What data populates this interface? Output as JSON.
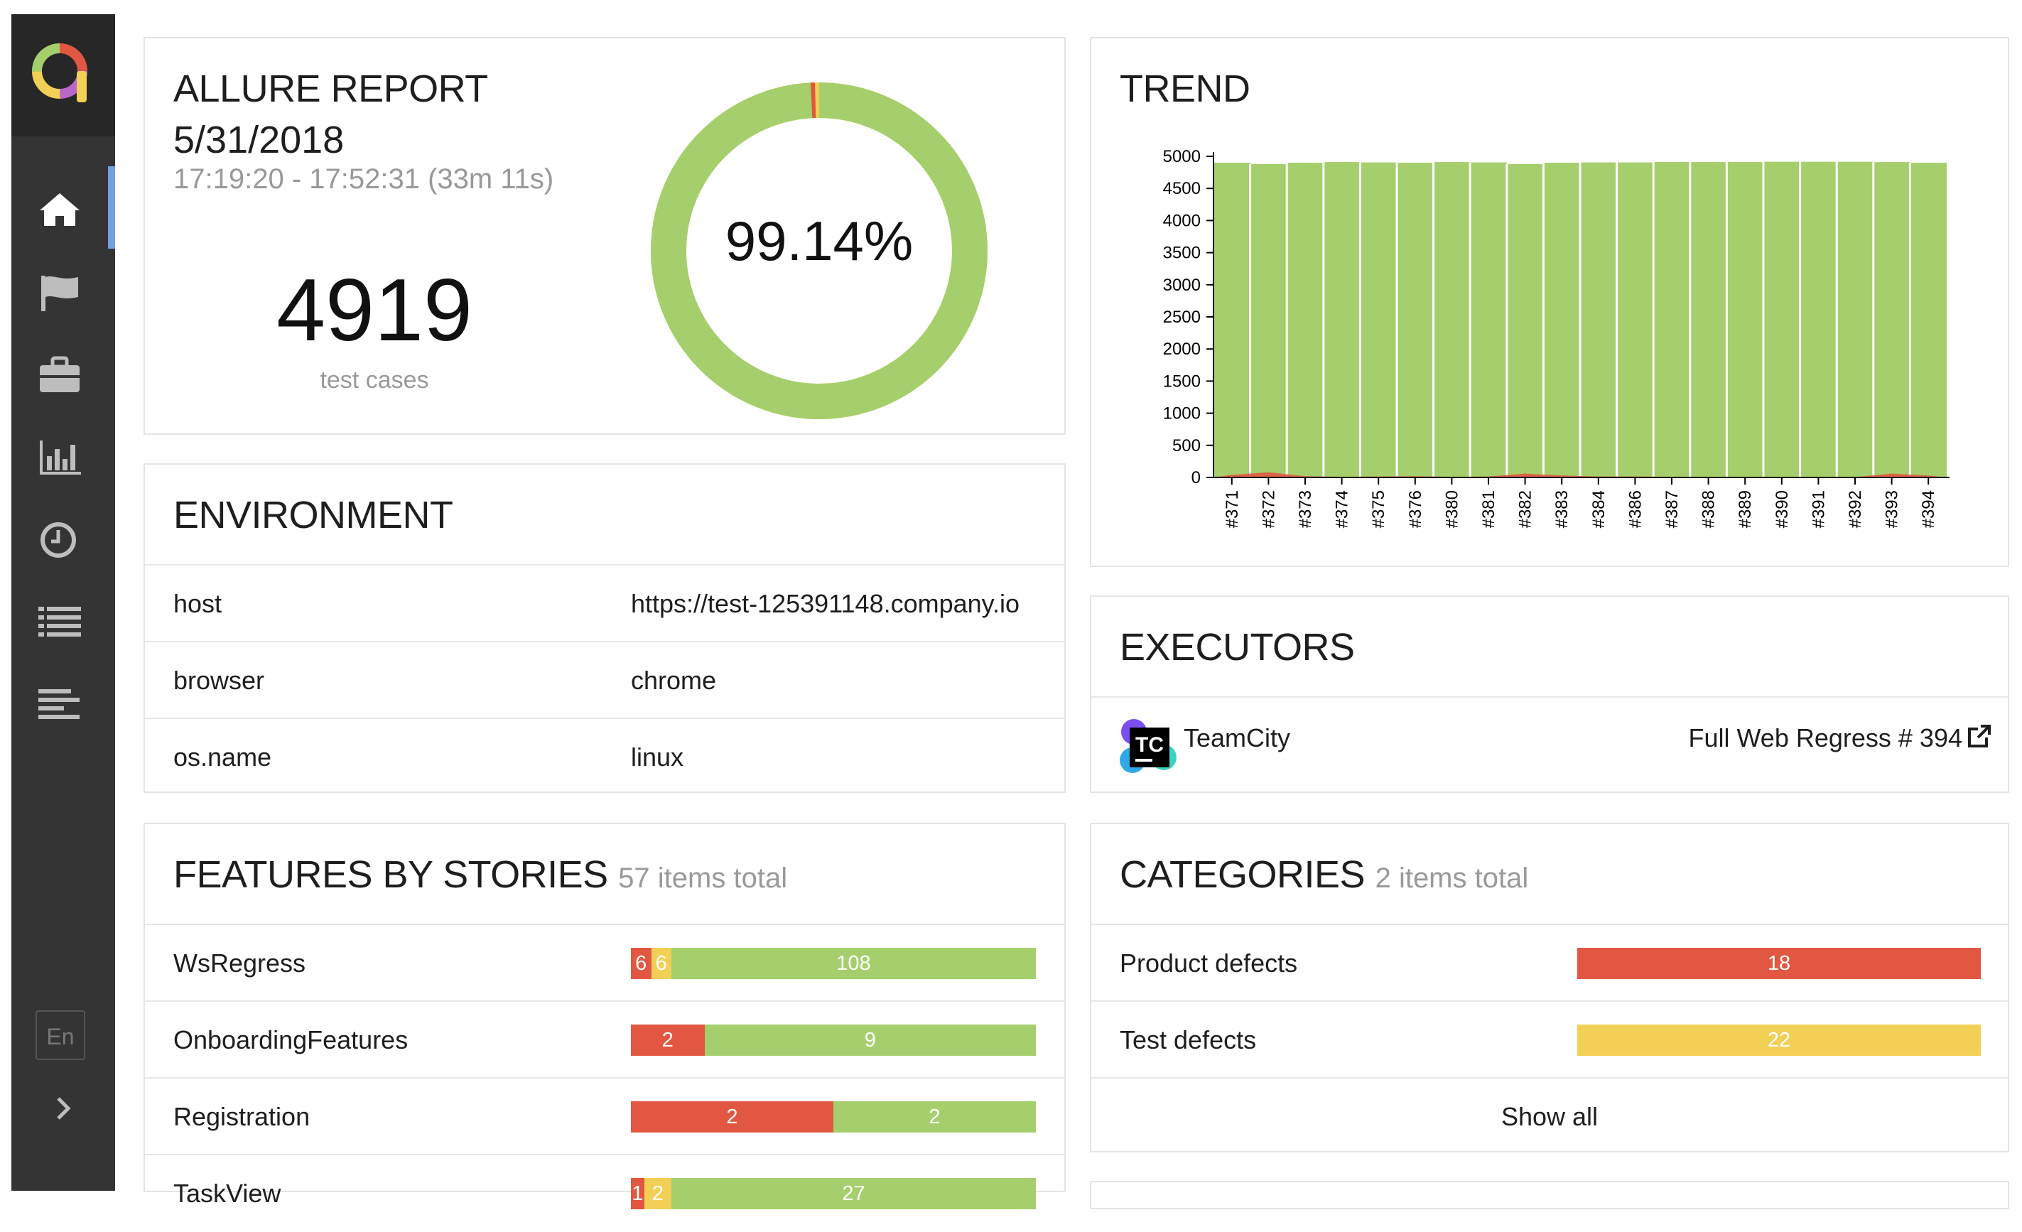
{
  "sidebar": {
    "nav_items": [
      "home-icon",
      "flag-icon",
      "briefcase-icon",
      "bar-chart-icon",
      "clock-icon",
      "list-icon",
      "timeline-icon"
    ],
    "active": "home-icon",
    "lang_label": "En"
  },
  "summary": {
    "title": "ALLURE REPORT",
    "date": "5/31/2018",
    "time_range": "17:19:20 - 17:52:31 (33m 11s)",
    "count": "4919",
    "count_label": "test cases",
    "percent": "99.14%",
    "passed_fraction": 0.9914,
    "colors": {
      "passed": "#a5cf6c",
      "failed": "#e15742",
      "broken": "#f2d055"
    }
  },
  "trend": {
    "title": "TREND"
  },
  "chart_data": {
    "type": "area",
    "title": "TREND",
    "x": [
      "#371",
      "#372",
      "#373",
      "#374",
      "#375",
      "#376",
      "#380",
      "#381",
      "#382",
      "#383",
      "#384",
      "#386",
      "#387",
      "#388",
      "#389",
      "#390",
      "#391",
      "#392",
      "#393",
      "#394"
    ],
    "yticks": [
      "0",
      "500",
      "1000",
      "1500",
      "2000",
      "2500",
      "3000",
      "3500",
      "4000",
      "4500",
      "5000"
    ],
    "ylim": [
      0,
      5000
    ],
    "series": [
      {
        "values": [
          4900,
          4880,
          4900,
          4910,
          4905,
          4900,
          4910,
          4905,
          4880,
          4900,
          4905,
          4905,
          4910,
          4910,
          4910,
          4915,
          4915,
          4915,
          4910,
          4900
        ]
      },
      {
        "values": [
          40,
          80,
          20,
          10,
          15,
          20,
          10,
          15,
          60,
          30,
          15,
          15,
          10,
          10,
          10,
          5,
          5,
          5,
          60,
          30
        ]
      }
    ],
    "colors": {
      "passed": "#a5cf6c",
      "failed": "#e15742"
    },
    "grid": false
  },
  "environment": {
    "title": "ENVIRONMENT",
    "rows": [
      {
        "key": "host",
        "value": "https://test-125391148.company.io"
      },
      {
        "key": "browser",
        "value": "chrome"
      },
      {
        "key": "os.name",
        "value": "linux"
      }
    ]
  },
  "executors": {
    "title": "EXECUTORS",
    "name": "TeamCity",
    "logo_text": "TC",
    "build": "Full Web Regress # 394"
  },
  "features": {
    "title": "FEATURES BY STORIES",
    "subtitle": "57 items total",
    "rows": [
      {
        "name": "WsRegress",
        "failed": 6,
        "broken": 6,
        "passed": 108
      },
      {
        "name": "OnboardingFeatures",
        "failed": 2,
        "broken": 0,
        "passed": 9
      },
      {
        "name": "Registration",
        "failed": 2,
        "broken": 0,
        "passed": 2
      },
      {
        "name": "TaskView",
        "failed": 1,
        "broken": 2,
        "passed": 27
      }
    ]
  },
  "categories": {
    "title": "CATEGORIES",
    "subtitle": "2 items total",
    "rows": [
      {
        "name": "Product defects",
        "value": 18,
        "status": "failed"
      },
      {
        "name": "Test defects",
        "value": 22,
        "status": "broken"
      }
    ],
    "show_all": "Show all"
  }
}
